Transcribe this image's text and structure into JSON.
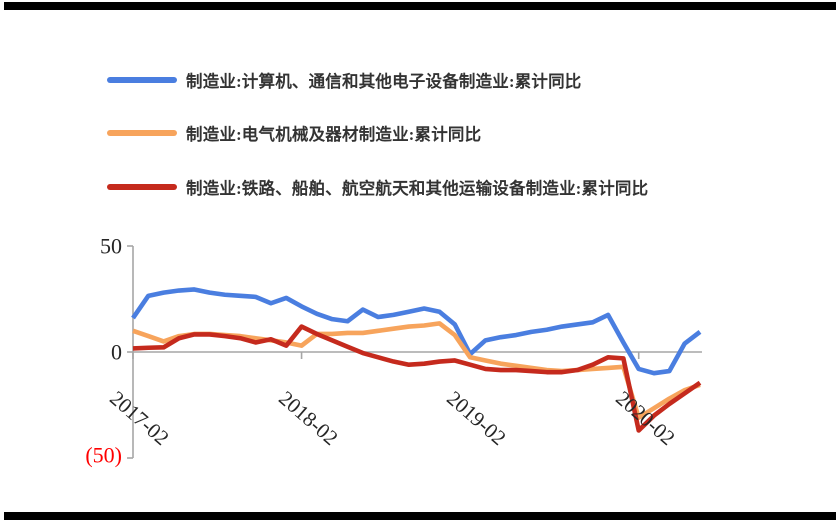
{
  "chart_data": {
    "type": "line",
    "title": "",
    "xlabel": "",
    "ylabel": "",
    "ylim": [
      -50,
      50
    ],
    "grid": "zero-baseline-only",
    "legend_position": "top-left",
    "axis_color": "#a6a6a6",
    "x": [
      "2017-02",
      "2017-03",
      "2017-04",
      "2017-05",
      "2017-06",
      "2017-07",
      "2017-08",
      "2017-09",
      "2017-10",
      "2017-11",
      "2017-12",
      "2018-02",
      "2018-03",
      "2018-04",
      "2018-05",
      "2018-06",
      "2018-07",
      "2018-08",
      "2018-09",
      "2018-10",
      "2018-11",
      "2018-12",
      "2019-02",
      "2019-03",
      "2019-04",
      "2019-05",
      "2019-06",
      "2019-07",
      "2019-08",
      "2019-09",
      "2019-10",
      "2019-11",
      "2019-12",
      "2020-02",
      "2020-03",
      "2020-04",
      "2020-05",
      "2020-06"
    ],
    "x_tick_labels": [
      "2017-02",
      "2018-02",
      "2019-02",
      "2020-02"
    ],
    "y_ticks": [
      {
        "label": "50",
        "value": 50,
        "color": "#262626"
      },
      {
        "label": "0",
        "value": 0,
        "color": "#262626"
      },
      {
        "label": "(50)",
        "value": -50,
        "color": "#ff0000"
      }
    ],
    "series": [
      {
        "name": "制造业:计算机、通信和其他电子设备制造业:累计同比",
        "color": "#4a7ee0",
        "values": [
          16,
          26.5,
          28,
          29,
          29.5,
          28,
          27,
          26.5,
          26,
          23,
          25.5,
          21.5,
          18,
          15.5,
          14.5,
          20,
          16.5,
          17.5,
          19,
          20.5,
          19,
          13,
          -1,
          5.5,
          7,
          8,
          9.5,
          10.5,
          12,
          13,
          14,
          17.5,
          4.5,
          -8,
          -10,
          -9,
          4,
          9.5
        ]
      },
      {
        "name": "制造业:电气机械及器材制造业:累计同比",
        "color": "#f7a45c",
        "values": [
          10,
          7.5,
          5,
          7.5,
          8.5,
          8.5,
          8,
          7.5,
          6.5,
          5.5,
          4.5,
          3,
          8.5,
          8.5,
          9,
          9,
          10,
          11,
          12,
          12.5,
          13.5,
          8,
          -2.5,
          -4,
          -5.5,
          -6.5,
          -7.5,
          -8.5,
          -9,
          -8.5,
          -8,
          -7.5,
          -7,
          -31,
          -26.5,
          -22,
          -18,
          -15.5
        ]
      },
      {
        "name": "制造业:铁路、船舶、航空航天和其他运输设备制造业:累计同比",
        "color": "#c52a1d",
        "values": [
          1.7,
          2,
          2.2,
          6.5,
          8.3,
          8.3,
          7.5,
          6.5,
          4.5,
          6,
          3,
          12,
          8.5,
          5.5,
          2.5,
          -0.5,
          -2.5,
          -4.5,
          -6,
          -5.5,
          -4.5,
          -4,
          -6,
          -8,
          -8.5,
          -8.5,
          -9,
          -9.5,
          -9.5,
          -8.5,
          -6,
          -2.5,
          -3,
          -37,
          -30,
          -24.5,
          -19.5,
          -14.5
        ]
      }
    ]
  }
}
